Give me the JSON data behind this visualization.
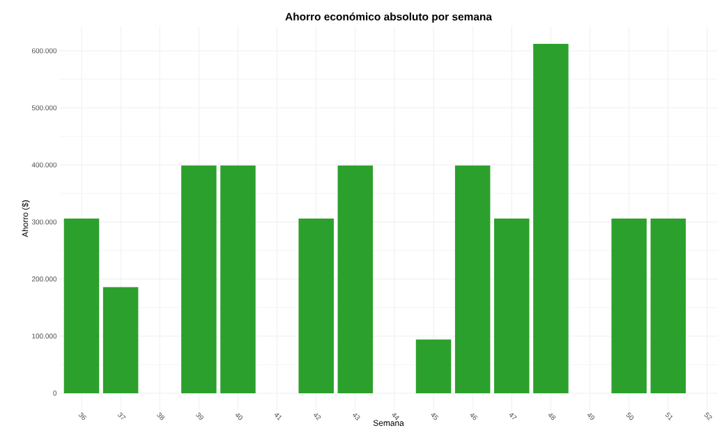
{
  "chart_data": {
    "type": "bar",
    "title": "Ahorro económico absoluto por semana",
    "xlabel": "Semana",
    "ylabel": "Ahorro ($)",
    "categories": [
      "36",
      "37",
      "38",
      "39",
      "40",
      "41",
      "42",
      "43",
      "44",
      "45",
      "46",
      "47",
      "48",
      "49",
      "50",
      "51",
      "52"
    ],
    "values": [
      306000,
      186000,
      null,
      399000,
      399000,
      null,
      306000,
      399000,
      null,
      94000,
      399000,
      306000,
      612000,
      null,
      306000,
      306000,
      null
    ],
    "color": "#2ca02c",
    "ylim": [
      -30600,
      642600
    ],
    "yticks": [
      0,
      {
        "value": 100000,
        "label": "100.000"
      },
      {
        "value": 200000,
        "label": "200.000"
      },
      {
        "value": 300000,
        "label": "300.000"
      },
      {
        "value": 400000,
        "label": "400.000"
      },
      {
        "value": 500000,
        "label": "500.000"
      },
      {
        "value": 600000,
        "label": "600.000"
      }
    ],
    "grid": true
  }
}
